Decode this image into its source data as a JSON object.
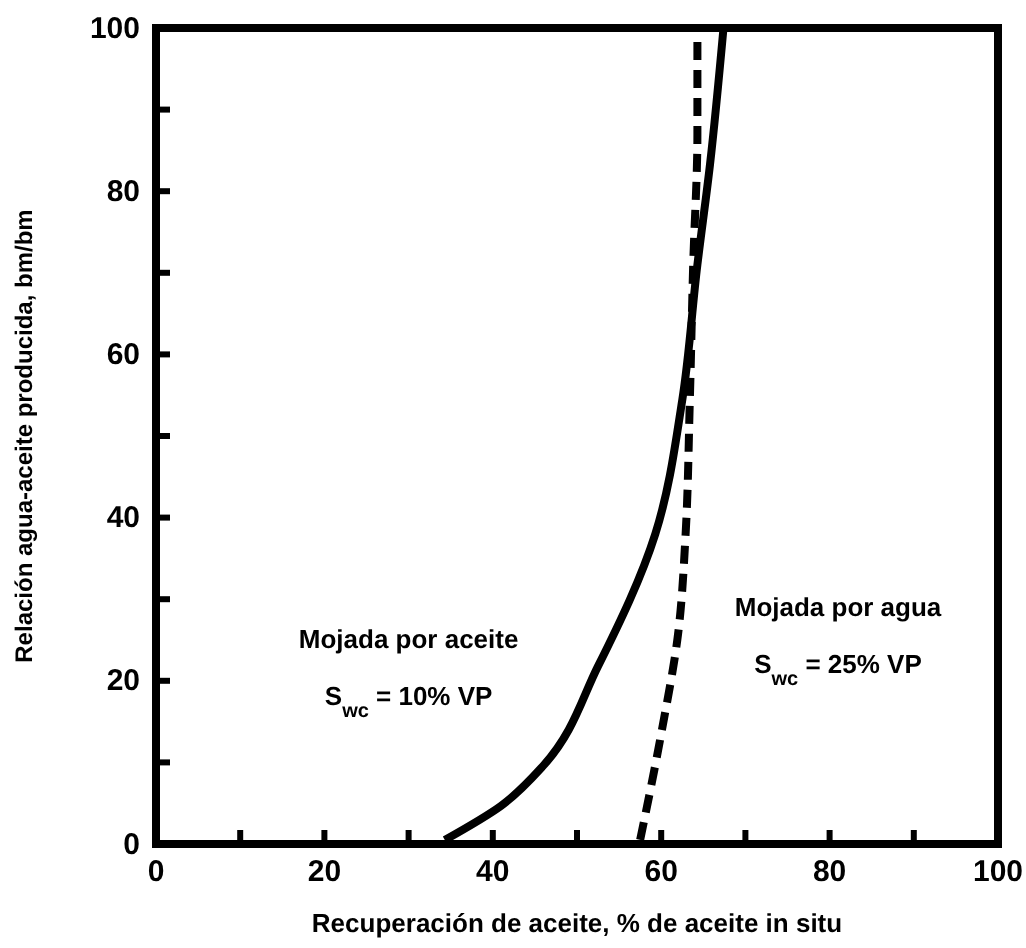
{
  "chart_data": {
    "type": "line",
    "xlabel": "Recuperación de aceite, % de aceite in situ",
    "ylabel": "Relación agua-aceite producida, bm/bm",
    "xlim": [
      0,
      100
    ],
    "ylim": [
      0,
      100
    ],
    "xticks": [
      0,
      {
        "value": 10,
        "label": null
      },
      20,
      {
        "value": 30,
        "label": null
      },
      40,
      {
        "value": 50,
        "label": null
      },
      60,
      {
        "value": 70,
        "label": null
      },
      80,
      {
        "value": 90,
        "label": null
      },
      100
    ],
    "yticks": [
      0,
      {
        "value": 10,
        "label": null
      },
      20,
      {
        "value": 30,
        "label": null
      },
      40,
      {
        "value": 50,
        "label": null
      },
      60,
      {
        "value": 70,
        "label": null
      },
      80,
      {
        "value": 90,
        "label": null
      },
      100
    ],
    "grid": false,
    "marker": "none",
    "series": [
      {
        "color": "#000000",
        "line_style": "solid",
        "x": [
          34.3,
          41,
          46,
          52.5,
          59.3,
          62.5,
          64.3,
          65.8,
          67.4
        ],
        "values": [
          0.5,
          4.7,
          9.6,
          21.8,
          38,
          54.4,
          71,
          83.3,
          100
        ]
      },
      {
        "color": "#000000",
        "line_style": "dashed",
        "x": [
          57.5,
          60,
          62,
          62.9,
          63.4,
          63.8,
          64.3,
          64.3
        ],
        "values": [
          0.5,
          13.5,
          25.7,
          38,
          54.4,
          71,
          87,
          100
        ]
      }
    ],
    "annotations": [
      "Mojada por aceite",
      "S$_{wc}$ = 10% VP",
      "Mojada por agua",
      "S$_{wc}$ = 25% VP"
    ]
  }
}
